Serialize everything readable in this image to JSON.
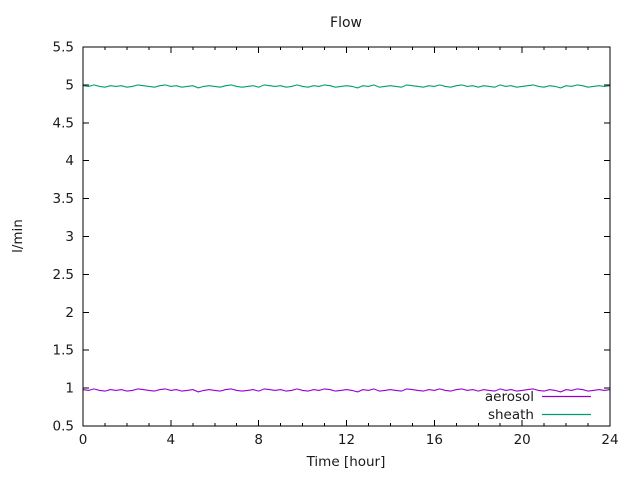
{
  "chart_data": {
    "type": "line",
    "title": "Flow",
    "xlabel": "Time [hour]",
    "ylabel": "l/min",
    "xlim": [
      0,
      24
    ],
    "ylim": [
      0.5,
      5.5
    ],
    "grid": false,
    "legend_position": "inside-bottom-right",
    "background_color": "#ffffff",
    "border_color": "#000000",
    "text_color": "#1a1a1a",
    "x_major_ticks": [
      0,
      4,
      8,
      12,
      16,
      20,
      24
    ],
    "x_tick_labels": [
      "0",
      "4",
      "8",
      "12",
      "16",
      "20",
      "24"
    ],
    "x_minor_tick_interval": 1,
    "y_major_ticks": [
      0.5,
      1,
      1.5,
      2,
      2.5,
      3,
      3.5,
      4,
      4.5,
      5,
      5.5
    ],
    "y_tick_labels": [
      "0.5",
      "1",
      "1.5",
      "2",
      "2.5",
      "3",
      "3.5",
      "4",
      "4.5",
      "5",
      "5.5"
    ],
    "series": [
      {
        "name": "aerosol",
        "color": "#9400d3",
        "approx_mean": 0.98,
        "x_start": 0,
        "x_step": 0.25,
        "values": [
          0.98,
          0.97,
          0.99,
          0.97,
          0.96,
          0.98,
          0.97,
          0.98,
          0.96,
          0.97,
          0.99,
          0.98,
          0.97,
          0.96,
          0.98,
          0.99,
          0.97,
          0.98,
          0.96,
          0.97,
          0.98,
          0.95,
          0.97,
          0.98,
          0.97,
          0.96,
          0.98,
          0.99,
          0.97,
          0.96,
          0.97,
          0.98,
          0.96,
          0.99,
          0.98,
          0.97,
          0.98,
          0.96,
          0.97,
          0.99,
          0.97,
          0.96,
          0.98,
          0.97,
          0.99,
          0.98,
          0.96,
          0.97,
          0.98,
          0.97,
          0.95,
          0.98,
          0.97,
          0.99,
          0.96,
          0.97,
          0.98,
          0.97,
          0.96,
          0.99,
          0.98,
          0.97,
          0.96,
          0.98,
          0.97,
          0.99,
          0.97,
          0.96,
          0.98,
          0.99,
          0.97,
          0.98,
          0.96,
          0.98,
          0.97,
          0.96,
          0.99,
          0.97,
          0.98,
          0.96,
          0.97,
          0.98,
          0.99,
          0.97,
          0.96,
          0.98,
          0.97,
          0.95,
          0.98,
          0.97,
          0.99,
          0.98,
          0.96,
          0.97,
          0.98,
          0.97,
          0.98
        ]
      },
      {
        "name": "sheath",
        "color": "#009e73",
        "approx_mean": 4.98,
        "x_start": 0,
        "x_step": 0.25,
        "values": [
          4.99,
          4.98,
          5.0,
          4.98,
          4.97,
          4.99,
          4.98,
          4.99,
          4.97,
          4.98,
          5.0,
          4.99,
          4.98,
          4.97,
          4.99,
          5.0,
          4.98,
          4.99,
          4.97,
          4.98,
          4.99,
          4.96,
          4.98,
          4.99,
          4.98,
          4.97,
          4.99,
          5.0,
          4.98,
          4.97,
          4.98,
          4.99,
          4.97,
          5.0,
          4.99,
          4.98,
          4.99,
          4.97,
          4.98,
          5.0,
          4.98,
          4.97,
          4.99,
          4.98,
          5.0,
          4.99,
          4.97,
          4.98,
          4.99,
          4.98,
          4.96,
          4.99,
          4.98,
          5.0,
          4.97,
          4.98,
          4.99,
          4.98,
          4.97,
          5.0,
          4.99,
          4.98,
          4.97,
          4.99,
          4.98,
          5.0,
          4.98,
          4.97,
          4.99,
          5.0,
          4.98,
          4.99,
          4.97,
          4.99,
          4.98,
          4.97,
          5.0,
          4.98,
          4.99,
          4.97,
          4.98,
          4.99,
          5.0,
          4.98,
          4.97,
          4.99,
          4.98,
          4.96,
          4.99,
          4.98,
          5.0,
          4.99,
          4.97,
          4.98,
          4.99,
          4.98,
          4.99
        ]
      }
    ]
  }
}
